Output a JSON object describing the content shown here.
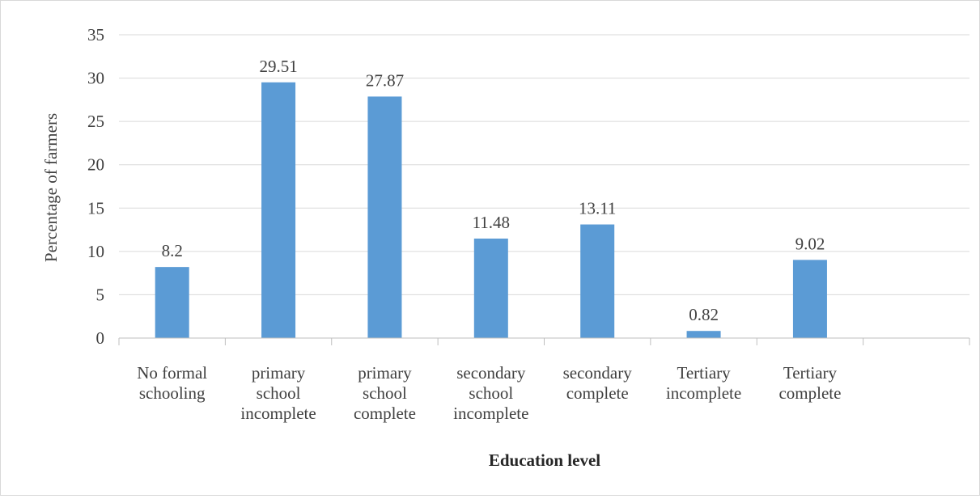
{
  "chart_data": {
    "type": "bar",
    "title": "",
    "xlabel": "Education level",
    "ylabel": "Percentage of farmers",
    "ylim": [
      0,
      35
    ],
    "yticks": [
      0,
      5,
      10,
      15,
      20,
      25,
      30,
      35
    ],
    "grid": true,
    "legend": "none",
    "bar_color": "#5b9bd5",
    "categories": [
      [
        "No formal",
        "schooling"
      ],
      [
        "primary",
        "school",
        "incomplete"
      ],
      [
        "primary",
        "school",
        "complete"
      ],
      [
        "secondary",
        "school",
        "incomplete"
      ],
      [
        "secondary",
        "complete"
      ],
      [
        "Tertiary",
        "incomplete"
      ],
      [
        "Tertiary",
        "complete"
      ],
      []
    ],
    "values": [
      8.2,
      29.51,
      27.87,
      11.48,
      13.11,
      0.82,
      9.02,
      null
    ],
    "data_labels": [
      "8.2",
      "29.51",
      "27.87",
      "11.48",
      "13.11",
      "0.82",
      "9.02",
      ""
    ]
  }
}
